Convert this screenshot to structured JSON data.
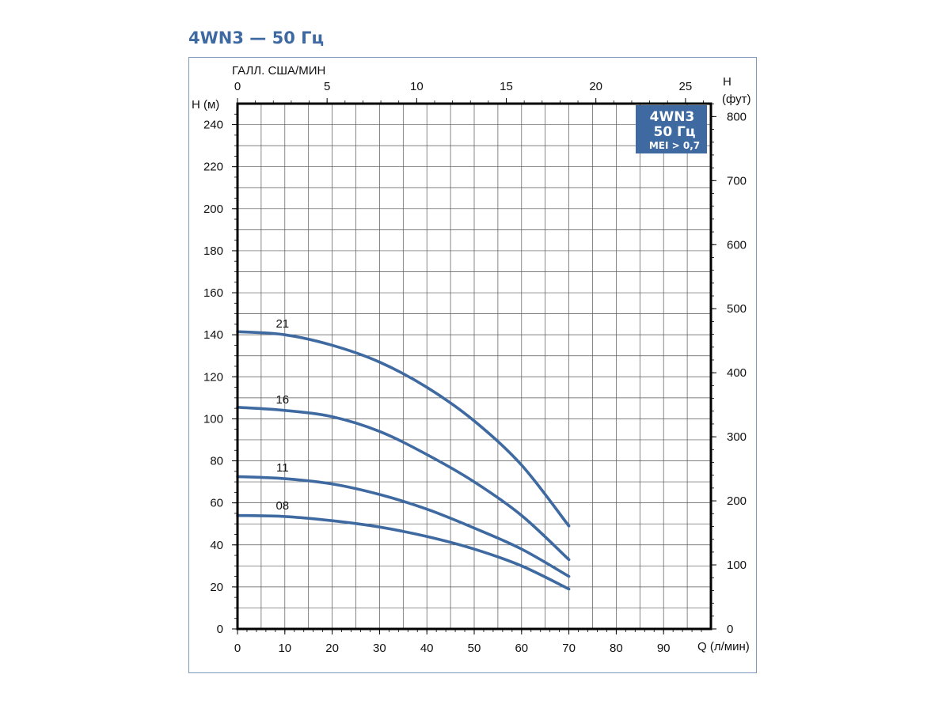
{
  "title": "4WN3 — 50 Гц",
  "colors": {
    "accent": "#3f6aa1",
    "curve": "#3f6aa1",
    "grid": "#555555",
    "frame": "#7f99bd",
    "axis": "#000000"
  },
  "badge": {
    "line1": "4WN3",
    "line2": "50 Гц",
    "line3": "MEI > 0,7"
  },
  "chart_data": {
    "type": "line",
    "title": "4WN3 — 50 Гц",
    "xlabel": "Q (л/мин)",
    "ylabel": "H (м)",
    "x2label": "ГАЛЛ. США/МИН",
    "y2label_line1": "H",
    "y2label_line2": "(фут)",
    "xlim": [
      0,
      100
    ],
    "ylim": [
      0,
      250
    ],
    "x2lim": [
      0,
      26.42
    ],
    "y2lim": [
      0,
      820.2
    ],
    "x_ticks": [
      0,
      10,
      20,
      30,
      40,
      50,
      60,
      70,
      80,
      90
    ],
    "y_ticks": [
      0,
      20,
      40,
      60,
      80,
      100,
      120,
      140,
      160,
      180,
      200,
      220,
      240
    ],
    "x2_ticks": [
      0,
      5,
      10,
      15,
      20,
      25
    ],
    "y2_ticks": [
      0,
      100,
      200,
      300,
      400,
      500,
      600,
      700,
      800
    ],
    "grid": true,
    "series": [
      {
        "name": "21",
        "x": [
          0,
          10,
          20,
          30,
          40,
          50,
          60,
          70
        ],
        "y": [
          141.5,
          140,
          135,
          127,
          115,
          99,
          78,
          49
        ]
      },
      {
        "name": "16",
        "x": [
          0,
          10,
          20,
          30,
          40,
          50,
          60,
          70
        ],
        "y": [
          105.5,
          104,
          101,
          94,
          83,
          70,
          54,
          33
        ]
      },
      {
        "name": "11",
        "x": [
          0,
          10,
          20,
          30,
          40,
          50,
          60,
          70
        ],
        "y": [
          72.5,
          71.5,
          69,
          64,
          57,
          48,
          38,
          25
        ]
      },
      {
        "name": "08",
        "x": [
          0,
          10,
          20,
          30,
          40,
          50,
          60,
          70
        ],
        "y": [
          54,
          53.5,
          51.5,
          48.5,
          44,
          38,
          30,
          19
        ]
      }
    ]
  }
}
